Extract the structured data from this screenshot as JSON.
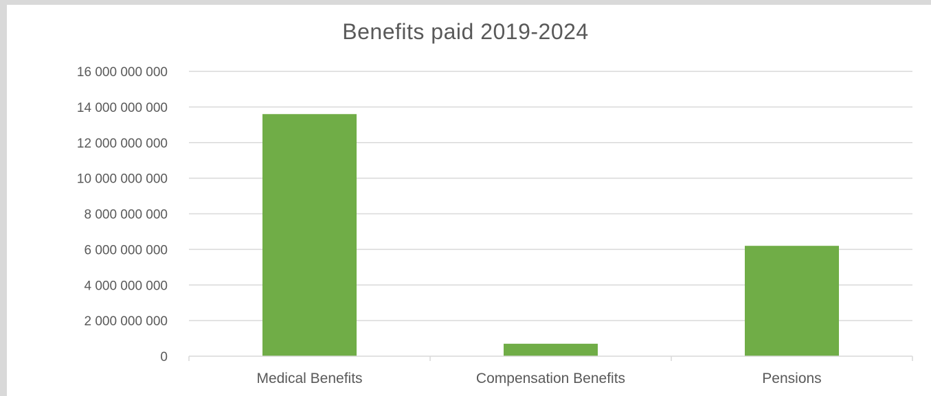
{
  "chart_data": {
    "type": "bar",
    "title": "Benefits paid  2019-2024",
    "xlabel": "",
    "ylabel": "",
    "categories": [
      "Medical Benefits",
      "Compensation Benefits",
      "Pensions"
    ],
    "values": [
      13600000000,
      700000000,
      6200000000
    ],
    "ylim": [
      0,
      16000000000
    ],
    "yticks": [
      0,
      2000000000,
      4000000000,
      6000000000,
      8000000000,
      10000000000,
      12000000000,
      14000000000,
      16000000000
    ],
    "ytick_labels": [
      "0",
      "2 000 000 000",
      "4 000 000 000",
      "6 000 000 000",
      "8 000 000 000",
      "10 000 000 000",
      "12 000 000 000",
      "14 000 000 000",
      "16 000 000 000"
    ],
    "grid": true,
    "legend": "none",
    "colors": {
      "bar": "#70ad47",
      "grid": "#d9d9d9",
      "text": "#595959",
      "frame": "#d9d9d9"
    }
  }
}
